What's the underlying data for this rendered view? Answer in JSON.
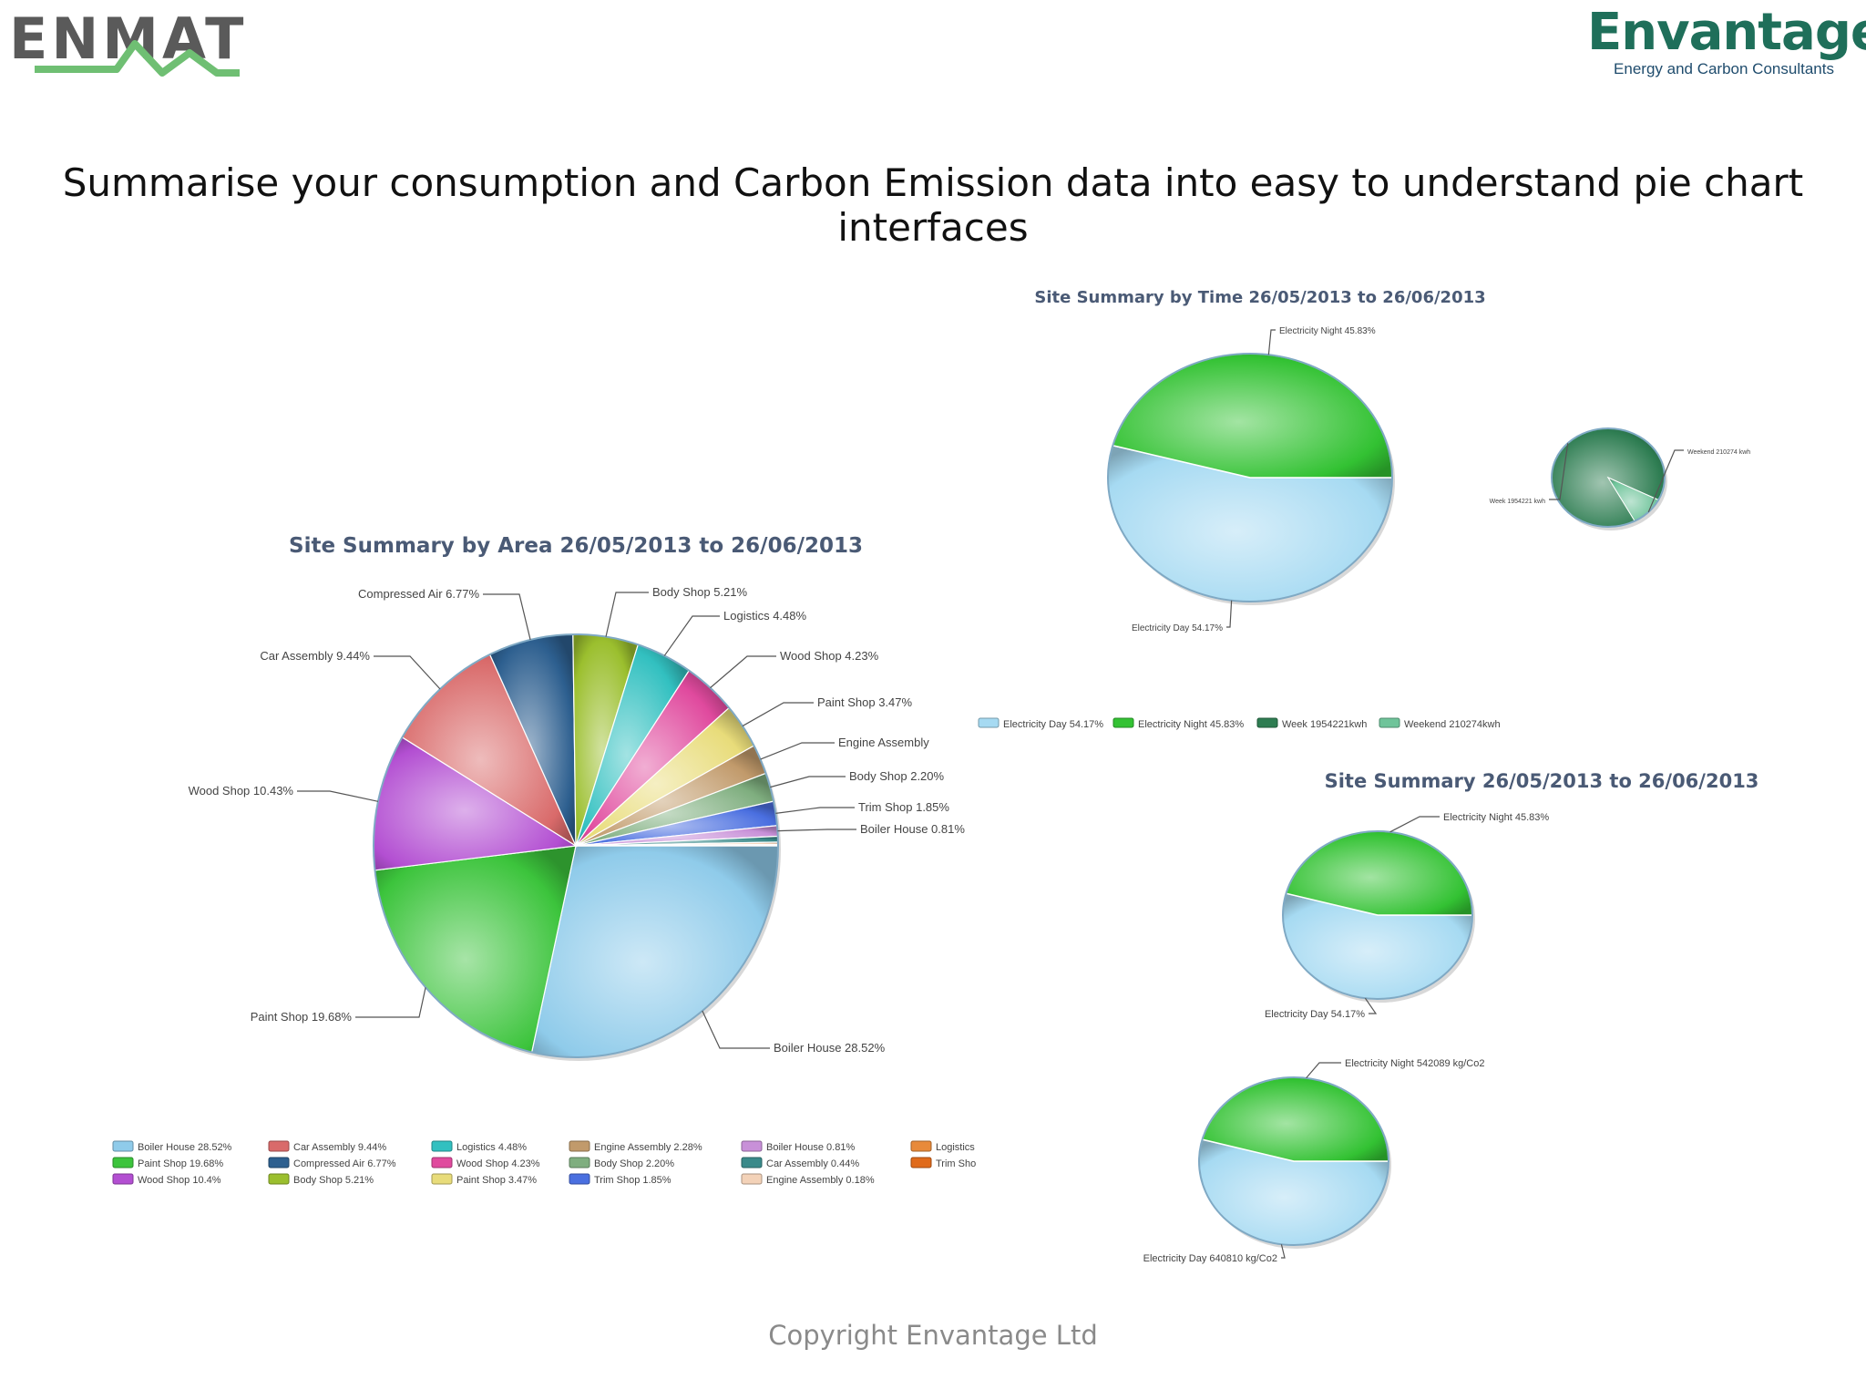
{
  "header": {
    "left_logo": "ENMAT",
    "right_logo_name": "Envantage",
    "right_logo_tagline": "Energy and Carbon Consultants"
  },
  "headline": "Summarise your consumption and Carbon Emission data into easy to understand pie chart interfaces",
  "footer": {
    "copyright": "Copyright Envantage Ltd"
  },
  "colors": {
    "brand_green": "#1f6f5a",
    "enmat_grey": "#555555",
    "enmat_green": "#6fbf73"
  },
  "chart_data": [
    {
      "type": "pie",
      "title": "Site Summary by Area 26/05/2013 to 26/06/2013",
      "slices": [
        {
          "label": "Boiler House 28.52%",
          "legend": "Boiler House 28.52%",
          "value": 28.52,
          "color": "#8fcbea"
        },
        {
          "label": "Paint Shop 19.68%",
          "legend": "Paint Shop 19.68%",
          "value": 19.68,
          "color": "#3cc43c"
        },
        {
          "label": "Wood Shop 10.43%",
          "legend": "Wood Shop 10.4%",
          "value": 10.43,
          "color": "#b34fd2"
        },
        {
          "label": "Car Assembly 9.44%",
          "legend": "Car Assembly 9.44%",
          "value": 9.44,
          "color": "#d96a6a"
        },
        {
          "label": "Compressed Air 6.77%",
          "legend": "Compressed Air 6.77%",
          "value": 6.77,
          "color": "#2d5f8f"
        },
        {
          "label": "Body Shop 5.21%",
          "legend": "Body Shop 5.21%",
          "value": 5.21,
          "color": "#9bbf2e"
        },
        {
          "label": "Logistics 4.48%",
          "legend": "Logistics 4.48%",
          "value": 4.48,
          "color": "#32c0c0"
        },
        {
          "label": "Wood Shop 4.23%",
          "legend": "Wood Shop 4.23%",
          "value": 4.23,
          "color": "#e04a9e"
        },
        {
          "label": "Paint Shop 3.47%",
          "legend": "Paint Shop 3.47%",
          "value": 3.47,
          "color": "#e8dc7a"
        },
        {
          "label": "Engine Assembly",
          "legend": "Engine Assembly 2.28%",
          "value": 2.28,
          "color": "#c19a6b"
        },
        {
          "label": "Body Shop 2.20%",
          "legend": "Body Shop 2.20%",
          "value": 2.2,
          "color": "#7fae7f"
        },
        {
          "label": "Trim Shop 1.85%",
          "legend": "Trim Shop 1.85%",
          "value": 1.85,
          "color": "#4a6fe0"
        },
        {
          "label": "Boiler House 0.81%",
          "legend": "Boiler House 0.81%",
          "value": 0.81,
          "color": "#c890d8"
        },
        {
          "label": "",
          "legend": "Car Assembly 0.44%",
          "value": 0.44,
          "color": "#3a8a8a"
        },
        {
          "label": "",
          "legend": "Engine Assembly 0.18%",
          "value": 0.18,
          "color": "#f3d2b8"
        },
        {
          "label": "",
          "legend": "Logistics",
          "value": 0.05,
          "color": "#e88a3a"
        },
        {
          "label": "",
          "legend": "Trim Sho",
          "value": 0.05,
          "color": "#e06a1a"
        }
      ]
    },
    {
      "type": "pie",
      "title": "Site Summary by Time 26/05/2013 to 26/06/2013",
      "slices": [
        {
          "label": "Electricity Day 54.17%",
          "value": 54.17,
          "color": "#a6daf2"
        },
        {
          "label": "Electricity Night 45.83%",
          "value": 45.83,
          "color": "#33c233"
        }
      ],
      "legend": [
        "Electricity Day 54.17%",
        "Electricity Night 45.83%",
        "Week 1954221kwh",
        "Weekend 210274kwh"
      ]
    },
    {
      "type": "pie",
      "title": "",
      "slices": [
        {
          "label": "Week 1954221 kwh",
          "value": 90.3,
          "color": "#2e7d52"
        },
        {
          "label": "Weekend 210274 kwh",
          "value": 9.7,
          "color": "#6fc49a"
        }
      ]
    },
    {
      "type": "pie",
      "title": "Site Summary 26/05/2013 to 26/06/2013",
      "slices": [
        {
          "label": "Electricity Day 54.17%",
          "value": 54.17,
          "color": "#a6daf2"
        },
        {
          "label": "Electricity Night 45.83%",
          "value": 45.83,
          "color": "#33c233"
        }
      ]
    },
    {
      "type": "pie",
      "title": "",
      "slices": [
        {
          "label": "Electricity Day 640810 kg/Co2",
          "value": 640810,
          "color": "#a6daf2"
        },
        {
          "label": "Electricity Night 542089 kg/Co2",
          "value": 542089,
          "color": "#33c233"
        }
      ]
    }
  ]
}
